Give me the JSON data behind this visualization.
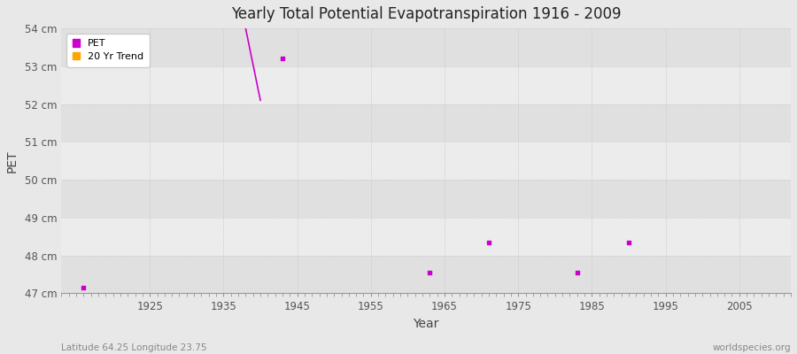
{
  "title": "Yearly Total Potential Evapotranspiration 1916 - 2009",
  "xlabel": "Year",
  "ylabel": "PET",
  "xlim": [
    1913,
    2012
  ],
  "ylim": [
    47.0,
    54.0
  ],
  "yticks": [
    47,
    48,
    49,
    50,
    51,
    52,
    53,
    54
  ],
  "ytick_labels": [
    "47 cm",
    "48 cm",
    "49 cm",
    "50 cm",
    "51 cm",
    "52 cm",
    "53 cm",
    "54 cm"
  ],
  "xticks": [
    1925,
    1935,
    1945,
    1955,
    1965,
    1975,
    1985,
    1995,
    2005
  ],
  "pet_color": "#CC00CC",
  "trend_color": "#FFA500",
  "bg_color": "#E8E8E8",
  "plot_bg_light": "#ECECEC",
  "plot_bg_dark": "#E0E0E0",
  "grid_color": "#C8C8C8",
  "pet_scatter": [
    [
      1916,
      47.15
    ],
    [
      1943,
      53.2
    ],
    [
      1963,
      47.55
    ],
    [
      1971,
      48.35
    ],
    [
      1983,
      47.55
    ],
    [
      1990,
      48.35
    ]
  ],
  "pet_line": [
    [
      1938,
      54.0
    ],
    [
      1940,
      52.1
    ]
  ],
  "subtitle_left": "Latitude 64.25 Longitude 23.75",
  "subtitle_right": "worldspecies.org",
  "legend_entries": [
    "PET",
    "20 Yr Trend"
  ],
  "legend_colors": [
    "#CC00CC",
    "#FFA500"
  ]
}
